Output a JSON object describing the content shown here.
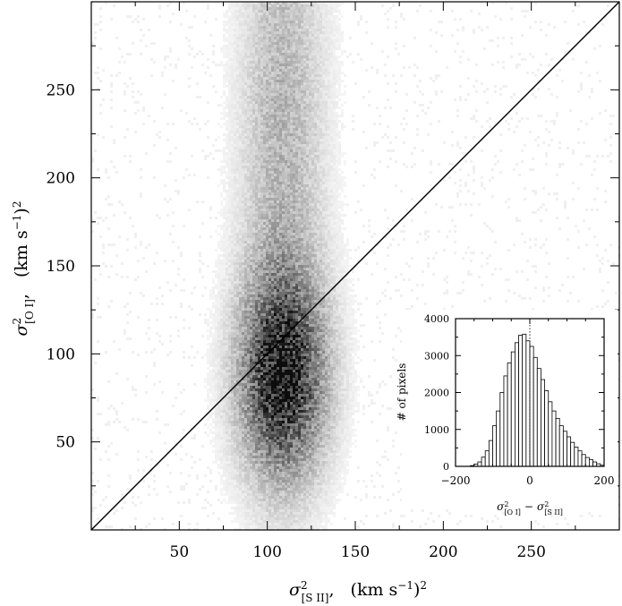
{
  "chart_data": [
    {
      "type": "heatmap",
      "subtype": "2d-density-scatter",
      "title": "",
      "xlabel": {
        "var": "σ",
        "sup": "2",
        "sub": "[S II]",
        "unit": "(km s",
        "unit_sup": "−1",
        "unit_tail": ")",
        "unit_tail_sup": "2"
      },
      "ylabel": {
        "var": "σ",
        "sup": "2",
        "sub": "[O I]",
        "unit": "(km s",
        "unit_sup": "−1",
        "unit_tail": ")",
        "unit_tail_sup": "2"
      },
      "xlim": [
        0,
        300
      ],
      "ylim": [
        0,
        300
      ],
      "x_ticks": [
        50,
        100,
        150,
        200,
        250
      ],
      "y_ticks": [
        50,
        100,
        150,
        200,
        250
      ],
      "x_tick_labels": [
        "50",
        "100",
        "150",
        "200",
        "250"
      ],
      "y_tick_labels": [
        "50",
        "100",
        "150",
        "200",
        "250"
      ],
      "density_peak": {
        "x": 108,
        "y": 88
      },
      "density_spread": {
        "x_sd": 17,
        "y_sd": 40
      },
      "colormap": [
        "#ffffff",
        "#000000"
      ],
      "reference_line": {
        "label": "",
        "x": [
          0,
          300
        ],
        "y": [
          0,
          300
        ]
      },
      "grid": false,
      "legend": "none"
    },
    {
      "type": "bar",
      "subtype": "histogram",
      "title": "",
      "xlabel": {
        "var1": "σ",
        "sup1": "2",
        "sub1": "[O I]",
        "minus": "−",
        "var2": "σ",
        "sup2": "2",
        "sub2": "[S II]"
      },
      "ylabel": "# of pixels",
      "xlim": [
        -200,
        200
      ],
      "ylim": [
        0,
        4000
      ],
      "x_tick_labels": [
        "−200",
        "0",
        "200"
      ],
      "y_tick_labels": [
        "0",
        "1000",
        "2000",
        "3000",
        "4000"
      ],
      "bin_width": 10,
      "bin_starts": [
        -200,
        -190,
        -180,
        -170,
        -160,
        -150,
        -140,
        -130,
        -120,
        -110,
        -100,
        -90,
        -80,
        -70,
        -60,
        -50,
        -40,
        -30,
        -20,
        -10,
        0,
        10,
        20,
        30,
        40,
        50,
        60,
        70,
        80,
        90,
        100,
        110,
        120,
        130,
        140,
        150,
        160,
        170,
        180,
        190
      ],
      "values": [
        0,
        0,
        0,
        0,
        20,
        60,
        120,
        250,
        420,
        700,
        1100,
        1500,
        2000,
        2450,
        2800,
        3100,
        3350,
        3550,
        3580,
        3400,
        3250,
        2950,
        2650,
        2350,
        2050,
        1750,
        1500,
        1300,
        1100,
        950,
        800,
        650,
        520,
        420,
        320,
        240,
        180,
        120,
        70,
        30
      ],
      "reference_line": {
        "label": "",
        "x": 0,
        "style": "dotted"
      },
      "grid": false,
      "legend": "none"
    }
  ]
}
